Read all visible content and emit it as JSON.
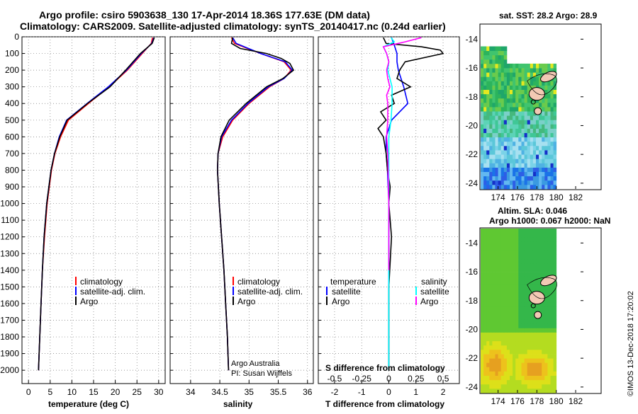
{
  "header": {
    "line1": "Argo profile: csiro 5903638_130 17-Apr-2014 18.36S 177.63E (DM data)",
    "line2": "Climatology: CARS2009. Satellite-adjusted climatology: synTS_20140417.nc (0.24d earlier)"
  },
  "colors": {
    "climatology": "#ff0000",
    "satellite": "#0000ff",
    "argo": "#000000",
    "sal_satellite": "#00ffff",
    "sal_argo": "#ff00ff"
  },
  "chart_data": [
    {
      "type": "line",
      "title": "",
      "xlabel": "temperature (deg C)",
      "ylabel": "",
      "xlim": [
        -1.5,
        31.5
      ],
      "ylim": [
        2080,
        0
      ],
      "xticks": [
        "0",
        "5",
        "10",
        "15",
        "20",
        "25",
        "30"
      ],
      "yticks": [
        "0",
        "100",
        "200",
        "300",
        "400",
        "500",
        "600",
        "700",
        "800",
        "900",
        "1000",
        "1100",
        "1200",
        "1300",
        "1400",
        "1500",
        "1600",
        "1700",
        "1800",
        "1900",
        "2000"
      ],
      "legend": [
        "climatology",
        "satellite-adj. clim.",
        "Argo"
      ],
      "series": [
        {
          "name": "climatology",
          "depth": [
            5,
            40,
            100,
            200,
            300,
            400,
            500,
            600,
            700,
            800,
            1000,
            1200,
            1400,
            1600,
            1800,
            2000
          ],
          "values": [
            28.6,
            28.3,
            26.2,
            22.8,
            18.6,
            13.8,
            9.2,
            7.4,
            6.1,
            5.3,
            4.3,
            3.7,
            3.2,
            2.9,
            2.6,
            2.3
          ]
        },
        {
          "name": "satellite-adj. clim.",
          "depth": [
            5,
            40,
            100,
            200,
            300,
            400,
            500,
            600,
            700,
            800,
            1000,
            1200,
            1400,
            1600,
            1800,
            2000
          ],
          "values": [
            28.9,
            28.4,
            26.0,
            22.6,
            18.4,
            13.5,
            8.8,
            7.1,
            6.0,
            5.2,
            4.2,
            3.6,
            3.2,
            2.9,
            2.6,
            2.3
          ]
        },
        {
          "name": "Argo",
          "depth": [
            5,
            40,
            100,
            200,
            300,
            400,
            500,
            600,
            700,
            800,
            1000,
            1200,
            1400,
            1600,
            1800,
            2000
          ],
          "values": [
            29.0,
            28.5,
            25.8,
            22.4,
            18.8,
            13.6,
            8.9,
            7.2,
            6.0,
            5.2,
            4.2,
            3.6,
            3.2,
            2.9,
            2.6,
            2.3
          ]
        }
      ]
    },
    {
      "type": "line",
      "title": "",
      "xlabel": "salinity",
      "ylabel": "",
      "xlim": [
        33.65,
        36.1
      ],
      "ylim": [
        2080,
        0
      ],
      "xticks": [
        "34",
        "34.5",
        "35",
        "35.5",
        "36"
      ],
      "legend": [
        "climatology",
        "satellite-adj. clim.",
        "Argo"
      ],
      "series": [
        {
          "name": "climatology",
          "depth": [
            5,
            40,
            100,
            150,
            200,
            250,
            300,
            400,
            500,
            600,
            700,
            800,
            1000,
            1200,
            1400,
            1600,
            1800,
            2000
          ],
          "values": [
            34.7,
            34.75,
            35.2,
            35.6,
            35.72,
            35.6,
            35.35,
            35.0,
            34.72,
            34.55,
            34.47,
            34.46,
            34.49,
            34.53,
            34.57,
            34.6,
            34.63,
            34.65
          ]
        },
        {
          "name": "satellite-adj. clim.",
          "depth": [
            5,
            40,
            100,
            150,
            200,
            250,
            300,
            400,
            500,
            600,
            700,
            800,
            1000,
            1200,
            1400,
            1600,
            1800,
            2000
          ],
          "values": [
            34.72,
            34.78,
            35.2,
            35.62,
            35.74,
            35.6,
            35.33,
            34.98,
            34.7,
            34.53,
            34.47,
            34.46,
            34.49,
            34.53,
            34.57,
            34.6,
            34.63,
            34.65
          ]
        },
        {
          "name": "Argo",
          "depth": [
            5,
            40,
            70,
            100,
            130,
            160,
            200,
            250,
            300,
            400,
            500,
            600,
            700,
            800,
            1000,
            1200,
            1400,
            1600,
            1800,
            2000
          ],
          "values": [
            34.72,
            34.7,
            34.85,
            35.3,
            35.55,
            35.7,
            35.76,
            35.58,
            35.3,
            34.95,
            34.66,
            34.52,
            34.47,
            34.46,
            34.49,
            34.53,
            34.57,
            34.6,
            34.63,
            34.65
          ]
        }
      ]
    },
    {
      "type": "line",
      "title": "S difference from climatology",
      "xlabel": "T difference from climatology",
      "ylabel": "",
      "xlim": [
        -2.6,
        2.6
      ],
      "ylim": [
        2080,
        0
      ],
      "xticks": [
        "-2",
        "-1",
        "0",
        "1",
        "2"
      ],
      "top_xticks": [
        "-0.5",
        "-0.25",
        "0",
        "0.25",
        "0.5"
      ],
      "top_xlim": [
        -0.65,
        0.65
      ],
      "legend_left_title": "temperature",
      "legend_right_title": "salinity",
      "legend_left": [
        "satellite",
        "Argo"
      ],
      "legend_right": [
        "satellite",
        "Argo"
      ],
      "series": [
        {
          "name": "temperature satellite",
          "axis": "T",
          "depth": [
            5,
            50,
            100,
            150,
            200,
            300,
            400,
            500,
            600,
            700,
            800,
            1000,
            1200,
            1500,
            2000
          ],
          "values": [
            0.1,
            0.2,
            0.3,
            0.3,
            0.35,
            0.55,
            0.7,
            0.1,
            -0.1,
            -0.1,
            -0.05,
            0.0,
            0.0,
            0.0,
            0.0
          ]
        },
        {
          "name": "temperature Argo",
          "axis": "T",
          "depth": [
            5,
            40,
            60,
            80,
            100,
            150,
            200,
            250,
            300,
            350,
            400,
            450,
            500,
            550,
            600,
            700,
            800,
            900,
            1000,
            1200,
            1500,
            2000
          ],
          "values": [
            -0.2,
            -0.1,
            1.2,
            1.9,
            2.0,
            0.6,
            0.4,
            0.3,
            0.8,
            0.1,
            0.2,
            -0.3,
            -0.1,
            -0.4,
            -0.2,
            -0.1,
            -0.05,
            0.05,
            0.0,
            0.1,
            0.0,
            0.0
          ]
        },
        {
          "name": "salinity satellite",
          "axis": "S",
          "depth": [
            5,
            30,
            60,
            100,
            150,
            200,
            300,
            400,
            500,
            600,
            700,
            1000,
            1500,
            2000
          ],
          "values": [
            0.02,
            0.05,
            -0.05,
            -0.02,
            0.0,
            -0.01,
            0.03,
            0.03,
            0.02,
            0.0,
            0.0,
            0.0,
            0.0,
            0.0
          ]
        },
        {
          "name": "salinity Argo",
          "axis": "S",
          "depth": [
            5,
            30,
            60,
            100,
            150,
            200,
            250,
            300,
            350,
            400,
            500,
            600,
            700,
            1000,
            1400
          ],
          "values": [
            0.3,
            0.15,
            -0.05,
            -0.02,
            0.0,
            -0.02,
            -0.01,
            0.01,
            -0.02,
            -0.01,
            -0.01,
            -0.02,
            -0.01,
            0.0,
            0.0
          ]
        }
      ]
    },
    {
      "type": "heatmap",
      "title": "sat. SST: 28.2 Argo: 28.9",
      "xticks": [
        "174",
        "176",
        "178",
        "180",
        "182"
      ],
      "yticks": [
        "-14",
        "-16",
        "-18",
        "-20",
        "-22",
        "-24"
      ],
      "xlim": [
        172.2,
        182.8
      ],
      "ylim": [
        -24.4,
        -13.0
      ]
    },
    {
      "type": "heatmap",
      "title_line1": "Altim. SLA: 0.046",
      "title_line2": "Argo h1000: 0.067 h2000: NaN",
      "xticks": [
        "174",
        "176",
        "178",
        "180",
        "182"
      ],
      "yticks": [
        "-14",
        "-16",
        "-18",
        "-20",
        "-22",
        "-24"
      ],
      "xlim": [
        172.2,
        182.8
      ],
      "ylim": [
        -24.4,
        -13.0
      ]
    }
  ],
  "footer": {
    "credit1": "Argo Australia",
    "credit2": "PI: Susan Wijffels",
    "stamp": "©IMOS 13-Dec-2018 17:20:02"
  }
}
